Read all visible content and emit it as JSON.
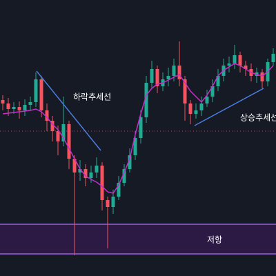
{
  "chart_data": {
    "type": "candlestick",
    "annotations": [
      "하락추세선",
      "상승추세선",
      "저항"
    ],
    "open": [
      255,
      250,
      242,
      245,
      240,
      248,
      252,
      285,
      240,
      225,
      210,
      195,
      220,
      170,
      150,
      155,
      142,
      150,
      160,
      110,
      100,
      115,
      135,
      155,
      175,
      200,
      230,
      280,
      300,
      275,
      285,
      290,
      305,
      285,
      250,
      235,
      240,
      250,
      260,
      275,
      290,
      305,
      308,
      320,
      305,
      300,
      290,
      295,
      282,
      310
    ],
    "high": [
      262,
      258,
      252,
      253,
      256,
      260,
      295,
      290,
      250,
      232,
      218,
      260,
      225,
      175,
      168,
      162,
      160,
      172,
      165,
      115,
      125,
      145,
      162,
      185,
      210,
      240,
      290,
      312,
      305,
      295,
      302,
      315,
      340,
      290,
      255,
      250,
      260,
      270,
      285,
      300,
      315,
      318,
      335,
      325,
      312,
      308,
      302,
      300,
      315,
      330
    ],
    "low": [
      240,
      232,
      235,
      228,
      232,
      240,
      245,
      230,
      210,
      195,
      175,
      188,
      155,
      30,
      138,
      130,
      135,
      142,
      95,
      40,
      90,
      110,
      130,
      150,
      168,
      192,
      222,
      272,
      265,
      268,
      275,
      282,
      275,
      225,
      220,
      228,
      232,
      245,
      252,
      268,
      282,
      295,
      300,
      295,
      290,
      282,
      280,
      272,
      275,
      305
    ],
    "close": [
      250,
      242,
      245,
      240,
      248,
      252,
      285,
      240,
      225,
      210,
      195,
      220,
      170,
      150,
      155,
      142,
      150,
      160,
      110,
      100,
      115,
      135,
      155,
      175,
      200,
      230,
      280,
      300,
      275,
      285,
      290,
      305,
      285,
      250,
      235,
      240,
      250,
      260,
      275,
      290,
      305,
      308,
      320,
      305,
      300,
      290,
      295,
      282,
      310,
      322
    ],
    "ma": [
      235,
      236,
      237,
      238,
      239,
      240,
      242,
      238,
      230,
      220,
      212,
      200,
      185,
      170,
      155,
      145,
      140,
      136,
      130,
      122,
      120,
      132,
      150,
      170,
      205,
      235,
      262,
      272,
      278,
      280,
      284,
      288,
      292,
      280,
      268,
      260,
      252,
      262,
      275,
      290,
      298,
      303,
      308,
      305,
      300,
      295,
      292,
      290,
      296,
      305
    ],
    "ylim": [
      0,
      400
    ],
    "up_color": "#22ab94",
    "down_color": "#f7525f",
    "ma_color": "#c62ec8"
  }
}
